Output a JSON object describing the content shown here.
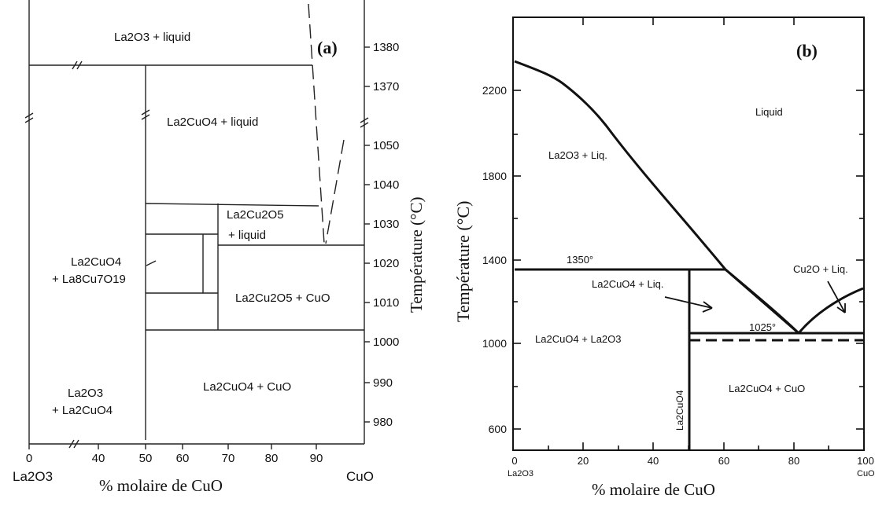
{
  "panel_a": {
    "label": "(a)",
    "y_title": "Température (°C)",
    "x_title": "% molaire de CuO",
    "x_end_left": "La2O3",
    "x_end_right": "CuO",
    "x_ticks": [
      "0",
      "40",
      "50",
      "60",
      "70",
      "80",
      "90"
    ],
    "y_ticks": [
      "1380",
      "1370",
      "1050",
      "1040",
      "1030",
      "1020",
      "1010",
      "1000",
      "990",
      "980"
    ],
    "regions": {
      "la2o3_liquid": "La2O3 + liquid",
      "la2cuo4_liquid": "La2CuO4 + liquid",
      "la2cu2o5_liquid_1": "La2Cu2O5",
      "la2cu2o5_liquid_2": "+ liquid",
      "la8_1": "La2CuO4",
      "la8_2": "+ La8Cu7O19",
      "la2cu2o5_cuo": "La2Cu2O5 + CuO",
      "la2o3_la2cuo4_1": "La2O3",
      "la2o3_la2cuo4_2": "+ La2CuO4",
      "la2cuo4_cuo": "La2CuO4 + CuO"
    }
  },
  "panel_b": {
    "label": "(b)",
    "y_title": "Température (°C)",
    "x_title": "% molaire de CuO",
    "x_end_left": "La2O3",
    "x_end_right": "CuO",
    "x_ticks": [
      "0",
      "20",
      "40",
      "60",
      "80",
      "100"
    ],
    "y_ticks": [
      "2200",
      "1800",
      "1400",
      "1000",
      "600"
    ],
    "annotations": {
      "t1350": "1350°",
      "t1025": "1025°",
      "vertical_phase": "La2CuO4"
    },
    "regions": {
      "liquid": "Liquid",
      "la2o3_liq": "La2O3 + Liq.",
      "la2cuo4_liq": "La2CuO4 + Liq.",
      "cu2o_liq": "Cu2O + Liq.",
      "la2cuo4_la2o3": "La2CuO4 + La2O3",
      "la2cuo4_cuo": "La2CuO4 + CuO"
    }
  }
}
